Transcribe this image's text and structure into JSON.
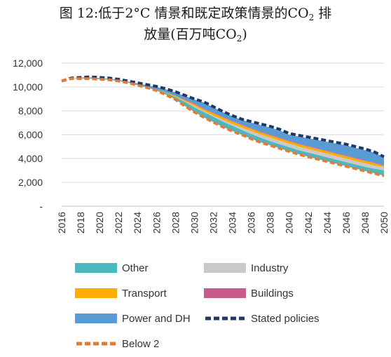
{
  "title": {
    "line1_prefix": "图 12:低于",
    "line1_two": "2",
    "line1_mid": "°C 情景和既定政策情景的CO",
    "line1_sub": "2",
    "line1_suffix": " 排",
    "line2_prefix": "放量(百万吨CO",
    "line2_sub": "2",
    "line2_suffix": ")"
  },
  "colors": {
    "other": "#4bb8c1",
    "industry": "#c9c9c9",
    "transport": "#ffad00",
    "buildings": "#c95a8c",
    "power_dh": "#5b9bd5",
    "stated_policies": "#1f3864",
    "below2": "#e07b3a",
    "grid": "#d9d9d9"
  },
  "chart_data": {
    "type": "area",
    "x": [
      2016,
      2017,
      2018,
      2019,
      2020,
      2021,
      2022,
      2023,
      2024,
      2025,
      2026,
      2027,
      2028,
      2029,
      2030,
      2031,
      2032,
      2033,
      2034,
      2035,
      2036,
      2037,
      2038,
      2039,
      2040,
      2041,
      2042,
      2043,
      2044,
      2045,
      2046,
      2047,
      2048,
      2049,
      2050
    ],
    "x_tick_labels": [
      "2016",
      "2018",
      "2020",
      "2022",
      "2024",
      "2026",
      "2028",
      "2030",
      "2032",
      "2034",
      "2036",
      "2038",
      "2040",
      "2042",
      "2044",
      "2046",
      "2048",
      "2050"
    ],
    "ylim": [
      0,
      12000
    ],
    "y_tick_labels": [
      "-",
      "2,000",
      "4,000",
      "6,000",
      "8,000",
      "10,000",
      "12,000"
    ],
    "grid": true,
    "legend_position": "bottom",
    "series": [
      {
        "name": "Other",
        "kind": "area",
        "values": [
          10500,
          10700,
          10750,
          10780,
          10700,
          10650,
          10550,
          10400,
          10200,
          10000,
          9800,
          9500,
          9150,
          8750,
          8300,
          7900,
          7500,
          7100,
          6750,
          6400,
          6050,
          5750,
          5450,
          5200,
          4950,
          4700,
          4500,
          4300,
          4100,
          3900,
          3700,
          3500,
          3300,
          3150,
          3000
        ]
      },
      {
        "name": "Industry",
        "kind": "area",
        "values": [
          10500,
          10700,
          10750,
          10780,
          10700,
          10650,
          10550,
          10400,
          10200,
          10000,
          9800,
          9500,
          9150,
          8800,
          8400,
          8000,
          7600,
          7250,
          6900,
          6600,
          6300,
          6000,
          5750,
          5500,
          5250,
          5000,
          4800,
          4600,
          4400,
          4200,
          4000,
          3800,
          3600,
          3400,
          3300
        ]
      },
      {
        "name": "Transport",
        "kind": "area",
        "values": [
          10500,
          10700,
          10750,
          10780,
          10700,
          10650,
          10550,
          10400,
          10200,
          10000,
          9800,
          9550,
          9250,
          8900,
          8550,
          8150,
          7800,
          7450,
          7100,
          6800,
          6500,
          6200,
          5950,
          5700,
          5450,
          5200,
          5000,
          4800,
          4600,
          4400,
          4200,
          4000,
          3800,
          3600,
          3400
        ]
      },
      {
        "name": "Buildings",
        "kind": "area",
        "values": [
          10500,
          10700,
          10750,
          10780,
          10700,
          10650,
          10550,
          10400,
          10200,
          10000,
          9800,
          9550,
          9250,
          8950,
          8600,
          8200,
          7850,
          7500,
          7150,
          6850,
          6550,
          6250,
          6000,
          5750,
          5500,
          5250,
          5050,
          4850,
          4650,
          4450,
          4250,
          4050,
          3850,
          3650,
          3450
        ]
      },
      {
        "name": "Power and DH",
        "kind": "area",
        "values": [
          10500,
          10700,
          10800,
          10800,
          10750,
          10700,
          10600,
          10450,
          10300,
          10150,
          10000,
          9800,
          9550,
          9250,
          8950,
          8700,
          8300,
          7900,
          7550,
          7250,
          7000,
          6800,
          6600,
          6350,
          6000,
          5850,
          5700,
          5550,
          5400,
          5250,
          5100,
          4900,
          4700,
          4500,
          4100
        ]
      },
      {
        "name": "Stated policies",
        "kind": "dashed-line",
        "values": [
          10500,
          10750,
          10800,
          10850,
          10800,
          10750,
          10650,
          10500,
          10350,
          10200,
          10050,
          9850,
          9600,
          9300,
          9000,
          8750,
          8350,
          7950,
          7600,
          7300,
          7100,
          6900,
          6700,
          6450,
          6100,
          5950,
          5800,
          5650,
          5500,
          5350,
          5200,
          5000,
          4800,
          4550,
          4150
        ]
      },
      {
        "name": "Below 2",
        "kind": "dashed-line",
        "values": [
          10500,
          10700,
          10700,
          10700,
          10650,
          10600,
          10500,
          10350,
          10150,
          9950,
          9700,
          9350,
          8950,
          8400,
          7900,
          7450,
          7050,
          6650,
          6300,
          6000,
          5650,
          5350,
          5100,
          4850,
          4600,
          4350,
          4150,
          3950,
          3750,
          3550,
          3350,
          3150,
          2950,
          2750,
          2550
        ]
      }
    ],
    "legend": [
      {
        "label": "Other",
        "key": "other",
        "swatch": "box"
      },
      {
        "label": "Industry",
        "key": "industry",
        "swatch": "box"
      },
      {
        "label": "Transport",
        "key": "transport",
        "swatch": "box"
      },
      {
        "label": "Buildings",
        "key": "buildings",
        "swatch": "box"
      },
      {
        "label": "Power and DH",
        "key": "power_dh",
        "swatch": "box"
      },
      {
        "label": "Stated policies",
        "key": "stated_policies",
        "swatch": "dash"
      },
      {
        "label": "Below 2",
        "key": "below2",
        "swatch": "dash"
      }
    ]
  }
}
